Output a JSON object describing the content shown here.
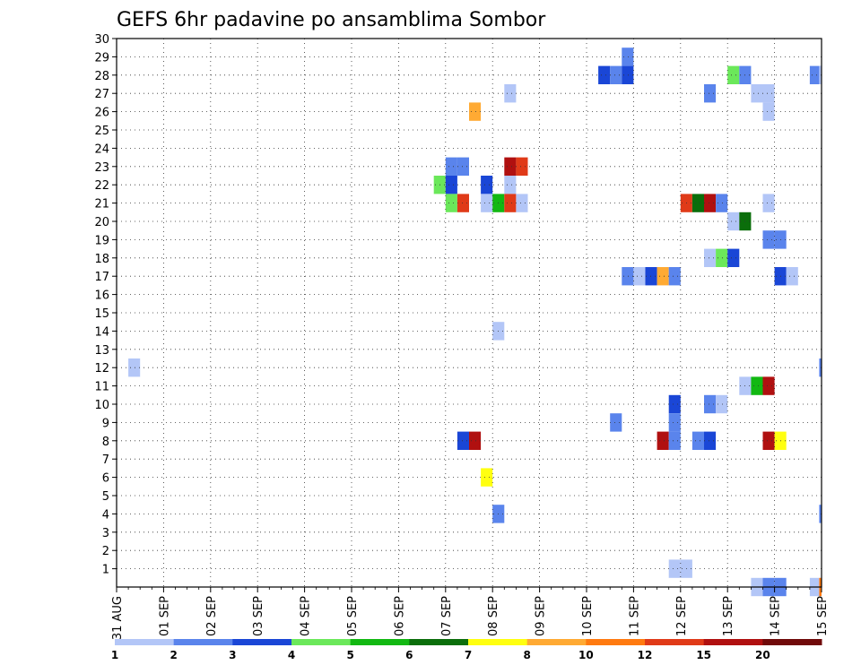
{
  "chart_data": {
    "type": "heatmap",
    "title": "GEFS 6hr padavine po ansamblima Sombor",
    "xlabel": "",
    "ylabel": "",
    "x_ticks": [
      "31 AUG",
      "01 SEP",
      "02 SEP",
      "03 SEP",
      "04 SEP",
      "05 SEP",
      "06 SEP",
      "07 SEP",
      "08 SEP",
      "09 SEP",
      "10 SEP",
      "11 SEP",
      "12 SEP",
      "13 SEP",
      "14 SEP",
      "15 SEP"
    ],
    "y_ticks": [
      "1",
      "2",
      "3",
      "4",
      "5",
      "6",
      "7",
      "8",
      "9",
      "10",
      "11",
      "12",
      "13",
      "14",
      "15",
      "16",
      "17",
      "18",
      "19",
      "20",
      "21",
      "22",
      "23",
      "24",
      "25",
      "26",
      "27",
      "28",
      "29",
      "30"
    ],
    "x_unit": "days since 31 AUG (6-hour steps)",
    "xlim": [
      0,
      15
    ],
    "ylim": [
      0,
      30
    ],
    "grid": true,
    "legend_position": "bottom",
    "colorbar": {
      "labels": [
        "1",
        "2",
        "3",
        "4",
        "5",
        "6",
        "7",
        "8",
        "10",
        "12",
        "15",
        "20"
      ],
      "colors": [
        "#b3c6f7",
        "#5a84ec",
        "#1a46d6",
        "#6be85a",
        "#12b812",
        "#0b6e0b",
        "#ffff10",
        "#ffaa33",
        "#ff7a10",
        "#e03a18",
        "#b01010",
        "#700a0a"
      ]
    },
    "cells": [
      {
        "member": 12,
        "t": 0.25,
        "c": 1
      },
      {
        "member": 29,
        "t": 10.75,
        "c": 2
      },
      {
        "member": 28,
        "t": 10.25,
        "c": 3
      },
      {
        "member": 28,
        "t": 10.5,
        "c": 2
      },
      {
        "member": 28,
        "t": 10.75,
        "c": 3
      },
      {
        "member": 28,
        "t": 13.0,
        "c": 4
      },
      {
        "member": 28,
        "t": 13.25,
        "c": 2
      },
      {
        "member": 28,
        "t": 14.75,
        "c": 2
      },
      {
        "member": 28,
        "t": 14.95,
        "c": 1
      },
      {
        "member": 27,
        "t": 8.25,
        "c": 1
      },
      {
        "member": 27,
        "t": 12.5,
        "c": 2
      },
      {
        "member": 27,
        "t": 13.5,
        "c": 1
      },
      {
        "member": 27,
        "t": 13.75,
        "c": 1
      },
      {
        "member": 26,
        "t": 7.5,
        "c": 8
      },
      {
        "member": 26,
        "t": 13.75,
        "c": 1
      },
      {
        "member": 23,
        "t": 7.0,
        "c": 2
      },
      {
        "member": 23,
        "t": 7.25,
        "c": 2
      },
      {
        "member": 23,
        "t": 8.25,
        "c": 11
      },
      {
        "member": 23,
        "t": 8.5,
        "c": 10
      },
      {
        "member": 22,
        "t": 6.75,
        "c": 4
      },
      {
        "member": 22,
        "t": 7.0,
        "c": 3
      },
      {
        "member": 22,
        "t": 7.75,
        "c": 3
      },
      {
        "member": 22,
        "t": 8.25,
        "c": 1
      },
      {
        "member": 21,
        "t": 7.0,
        "c": 4
      },
      {
        "member": 21,
        "t": 7.25,
        "c": 10
      },
      {
        "member": 21,
        "t": 7.75,
        "c": 1
      },
      {
        "member": 21,
        "t": 8.0,
        "c": 5
      },
      {
        "member": 21,
        "t": 8.25,
        "c": 10
      },
      {
        "member": 21,
        "t": 8.5,
        "c": 1
      },
      {
        "member": 21,
        "t": 12.0,
        "c": 10
      },
      {
        "member": 21,
        "t": 12.25,
        "c": 6
      },
      {
        "member": 21,
        "t": 12.5,
        "c": 11
      },
      {
        "member": 21,
        "t": 12.75,
        "c": 2
      },
      {
        "member": 21,
        "t": 13.75,
        "c": 1
      },
      {
        "member": 20,
        "t": 13.0,
        "c": 1
      },
      {
        "member": 20,
        "t": 13.25,
        "c": 6
      },
      {
        "member": 19,
        "t": 13.75,
        "c": 2
      },
      {
        "member": 19,
        "t": 14.0,
        "c": 2
      },
      {
        "member": 18,
        "t": 12.5,
        "c": 1
      },
      {
        "member": 18,
        "t": 12.75,
        "c": 4
      },
      {
        "member": 18,
        "t": 13.0,
        "c": 3
      },
      {
        "member": 17,
        "t": 10.75,
        "c": 2
      },
      {
        "member": 17,
        "t": 11.0,
        "c": 1
      },
      {
        "member": 17,
        "t": 11.25,
        "c": 3
      },
      {
        "member": 17,
        "t": 11.5,
        "c": 8
      },
      {
        "member": 17,
        "t": 11.75,
        "c": 2
      },
      {
        "member": 17,
        "t": 14.0,
        "c": 3
      },
      {
        "member": 17,
        "t": 14.25,
        "c": 1
      },
      {
        "member": 14,
        "t": 8.0,
        "c": 1
      },
      {
        "member": 12,
        "t": 14.95,
        "c": 2
      },
      {
        "member": 11,
        "t": 13.25,
        "c": 1
      },
      {
        "member": 11,
        "t": 13.5,
        "c": 5
      },
      {
        "member": 11,
        "t": 13.75,
        "c": 11
      },
      {
        "member": 10,
        "t": 11.75,
        "c": 3
      },
      {
        "member": 10,
        "t": 12.5,
        "c": 2
      },
      {
        "member": 10,
        "t": 12.75,
        "c": 1
      },
      {
        "member": 9,
        "t": 10.5,
        "c": 2
      },
      {
        "member": 9,
        "t": 11.75,
        "c": 2
      },
      {
        "member": 8,
        "t": 7.25,
        "c": 3
      },
      {
        "member": 8,
        "t": 7.5,
        "c": 11
      },
      {
        "member": 8,
        "t": 11.5,
        "c": 11
      },
      {
        "member": 8,
        "t": 11.75,
        "c": 2
      },
      {
        "member": 8,
        "t": 12.25,
        "c": 2
      },
      {
        "member": 8,
        "t": 12.5,
        "c": 3
      },
      {
        "member": 8,
        "t": 13.75,
        "c": 11
      },
      {
        "member": 8,
        "t": 14.0,
        "c": 7
      },
      {
        "member": 6,
        "t": 7.75,
        "c": 7
      },
      {
        "member": 4,
        "t": 8.0,
        "c": 2
      },
      {
        "member": 4,
        "t": 14.95,
        "c": 2
      },
      {
        "member": 1,
        "t": 11.75,
        "c": 1
      },
      {
        "member": 1,
        "t": 12.0,
        "c": 1
      },
      {
        "member": 0,
        "t": 13.5,
        "c": 1
      },
      {
        "member": 0,
        "t": 13.75,
        "c": 2
      },
      {
        "member": 0,
        "t": 14.0,
        "c": 2
      },
      {
        "member": 0,
        "t": 14.75,
        "c": 1
      },
      {
        "member": 0,
        "t": 14.95,
        "c": 9
      }
    ]
  }
}
